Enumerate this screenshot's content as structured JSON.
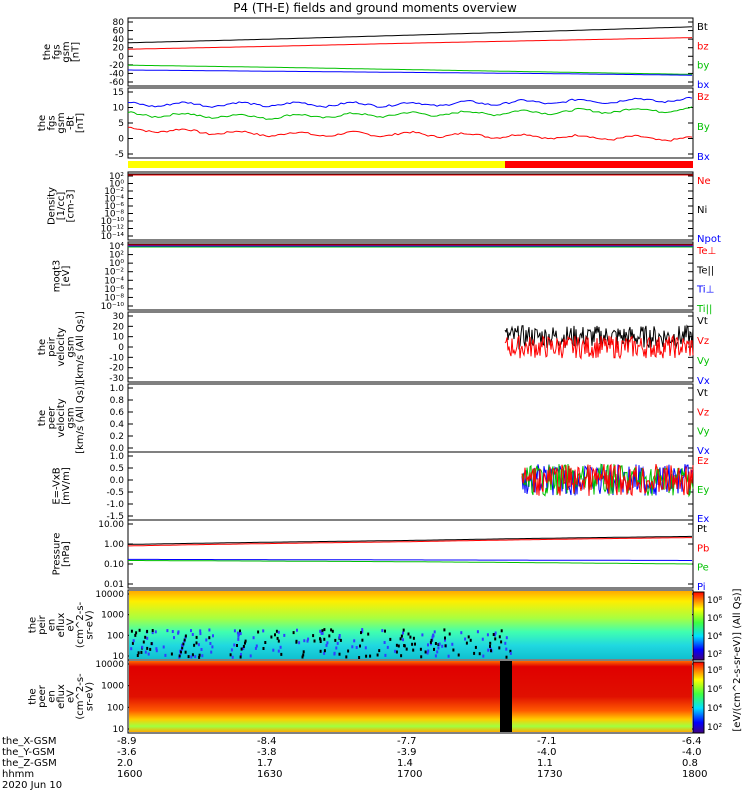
{
  "title": "P4 (TH-E) fields and ground moments overview",
  "panels": [
    {
      "id": "fgs-gsm-1",
      "ylabel": [
        "the",
        "fgs",
        "gsm",
        "[nT]"
      ],
      "type": "line",
      "yticks": [
        "80",
        "60",
        "40",
        "20",
        "0",
        "-20",
        "-40",
        "-60"
      ],
      "legend": [
        {
          "text": "Bt",
          "color": "#000000"
        },
        {
          "text": "bz",
          "color": "#ff0000"
        },
        {
          "text": "by",
          "color": "#00c000"
        },
        {
          "text": "bx",
          "color": "#0000ff"
        }
      ]
    },
    {
      "id": "fgs-gsm-2",
      "ylabel": [
        "the",
        "fgs",
        "gsm",
        "-Bt",
        "[nT]"
      ],
      "type": "line",
      "yticks": [
        "15",
        "10",
        "5",
        "0",
        "-5"
      ],
      "legend": [
        {
          "text": "Bz",
          "color": "#ff0000"
        },
        {
          "text": "By",
          "color": "#00c000"
        },
        {
          "text": "Bx",
          "color": "#0000ff"
        }
      ]
    },
    {
      "id": "density",
      "ylabel": [
        "Density",
        "[1/cc]",
        "[cm-3]"
      ],
      "type": "log",
      "yticks": [
        "10²",
        "10⁰",
        "10⁻²",
        "10⁻⁴",
        "10⁻⁶",
        "10⁻⁸",
        "10⁻¹⁰",
        "10⁻¹²",
        "10⁻¹⁴"
      ],
      "legend": [
        {
          "text": "Ne",
          "color": "#ff0000"
        },
        {
          "text": "Ni",
          "color": "#000000"
        },
        {
          "text": "Npot",
          "color": "#0000ff"
        }
      ]
    },
    {
      "id": "temperature",
      "ylabel": [
        "moqt3",
        "[eV]"
      ],
      "type": "log",
      "yticks": [
        "10⁴",
        "10²",
        "10⁰",
        "10⁻²",
        "10⁻⁴",
        "10⁻⁶",
        "10⁻⁸",
        "10⁻¹⁰"
      ],
      "legend": [
        {
          "text": "Te⊥",
          "color": "#ff0000"
        },
        {
          "text": "Te||",
          "color": "#000000"
        },
        {
          "text": "Ti⊥",
          "color": "#0000ff"
        },
        {
          "text": "Ti||",
          "color": "#00c000"
        }
      ]
    },
    {
      "id": "peir-velocity",
      "ylabel": [
        "the",
        "peir",
        "velocity",
        "gsm",
        "[km/s (All Qs)]"
      ],
      "type": "line",
      "yticks": [
        "30",
        "20",
        "10",
        "0",
        "-10",
        "-20",
        "-30"
      ],
      "legend": [
        {
          "text": "Vt",
          "color": "#000000"
        },
        {
          "text": "Vz",
          "color": "#ff0000"
        },
        {
          "text": "Vy",
          "color": "#00c000"
        },
        {
          "text": "Vx",
          "color": "#0000ff"
        }
      ]
    },
    {
      "id": "peer-velocity",
      "ylabel": [
        "the",
        "peer",
        "velocity",
        "gsm",
        "[km/s (All Qs)]"
      ],
      "type": "line",
      "yticks": [
        "1.0",
        "0.8",
        "0.6",
        "0.4",
        "0.2",
        "0.0"
      ],
      "legend": [
        {
          "text": "Vt",
          "color": "#000000"
        },
        {
          "text": "Vz",
          "color": "#ff0000"
        },
        {
          "text": "Vy",
          "color": "#00c000"
        },
        {
          "text": "Vx",
          "color": "#0000ff"
        }
      ]
    },
    {
      "id": "efield",
      "ylabel": [
        "E=-VxB",
        "[mV/m]"
      ],
      "type": "line",
      "yticks": [
        "1.0",
        "0.5",
        "0.0",
        "-0.5",
        "-1.0",
        "-1.5"
      ],
      "legend": [
        {
          "text": "Ez",
          "color": "#ff0000"
        },
        {
          "text": "Ey",
          "color": "#00c000"
        },
        {
          "text": "Ex",
          "color": "#0000ff"
        }
      ]
    },
    {
      "id": "pressure",
      "ylabel": [
        "Pressure",
        "[nPa]"
      ],
      "type": "log",
      "yticks": [
        "10.00",
        "1.00",
        "0.10",
        "0.01"
      ],
      "legend": [
        {
          "text": "Pt",
          "color": "#000000"
        },
        {
          "text": "Pb",
          "color": "#ff0000"
        },
        {
          "text": "Pe",
          "color": "#00c000"
        },
        {
          "text": "Pi",
          "color": "#0000ff"
        }
      ]
    },
    {
      "id": "peir-eflux",
      "ylabel": [
        "the",
        "peir",
        "en",
        "eflux",
        "eV",
        "(cm^2-s-",
        "sr-eV)"
      ],
      "type": "spectrogram",
      "yticks": [
        "10000",
        "1000",
        "100",
        "10"
      ],
      "legend": []
    },
    {
      "id": "peer-eflux",
      "ylabel": [
        "the",
        "peer",
        "en",
        "eflux",
        "eV",
        "(cm^2-s-",
        "sr-eV)"
      ],
      "type": "spectrogram",
      "yticks": [
        "10000",
        "1000",
        "100",
        "10"
      ],
      "legend": []
    }
  ],
  "colorbar": {
    "ticks": [
      "10⁸",
      "10⁶",
      "10⁴",
      "10²",
      "10⁸",
      "10⁶",
      "10⁴",
      "10²"
    ],
    "label": "[eV/(cm^2-s-sr-eV)] (All Qs)]"
  },
  "mode_bar": {
    "colors": [
      "#ffff00",
      "#ff0000"
    ]
  },
  "footer": {
    "rows": [
      {
        "label": "the_X-GSM",
        "values": [
          "-8.9",
          "-8.4",
          "-7.7",
          "-7.1",
          "-6.4"
        ]
      },
      {
        "label": "the_Y-GSM",
        "values": [
          "-3.6",
          "-3.8",
          "-3.9",
          "-4.0",
          "-4.0"
        ]
      },
      {
        "label": "the_Z-GSM",
        "values": [
          "2.0",
          "1.7",
          "1.4",
          "1.1",
          "0.8"
        ]
      },
      {
        "label": "hhmm",
        "values": [
          "1600",
          "1630",
          "1700",
          "1730",
          "1800"
        ]
      }
    ],
    "date": "2020 Jun 10"
  },
  "chart_data": [
    {
      "type": "line",
      "panel": "fgs-gsm-1",
      "xlim": [
        "1600",
        "1800"
      ],
      "ylim": [
        -60,
        90
      ],
      "series": [
        {
          "name": "Bt",
          "x": [
            "1600",
            "1630",
            "1700",
            "1730",
            "1800"
          ],
          "values": [
            38,
            47,
            57,
            67,
            78
          ]
        },
        {
          "name": "bz",
          "x": [
            "1600",
            "1630",
            "1700",
            "1730",
            "1800"
          ],
          "values": [
            22,
            29,
            37,
            44,
            51
          ]
        },
        {
          "name": "by",
          "x": [
            "1600",
            "1630",
            "1700",
            "1730",
            "1800"
          ],
          "values": [
            -18,
            -23,
            -29,
            -35,
            -41
          ]
        },
        {
          "name": "bx",
          "x": [
            "1600",
            "1630",
            "1700",
            "1730",
            "1800"
          ],
          "values": [
            -30,
            -33,
            -36,
            -39,
            -43
          ]
        }
      ]
    },
    {
      "type": "line",
      "panel": "fgs-gsm-2",
      "xlim": [
        "1600",
        "1800"
      ],
      "ylim": [
        -8,
        17
      ],
      "series": [
        {
          "name": "Bz",
          "x": [
            "1600",
            "1630",
            "1700",
            "1730",
            "1800"
          ],
          "values": [
            2,
            0,
            0,
            -1,
            -2
          ]
        },
        {
          "name": "By",
          "x": [
            "1600",
            "1630",
            "1700",
            "1730",
            "1800"
          ],
          "values": [
            8,
            7,
            8,
            9,
            10
          ]
        },
        {
          "name": "Bx",
          "x": [
            "1600",
            "1630",
            "1700",
            "1730",
            "1800"
          ],
          "values": [
            12,
            12,
            12,
            13,
            14
          ]
        }
      ]
    },
    {
      "type": "line",
      "panel": "pressure",
      "xlim": [
        "1600",
        "1800"
      ],
      "ylim": [
        0.01,
        10
      ],
      "series": [
        {
          "name": "Pt",
          "x": [
            "1600",
            "1700",
            "1800"
          ],
          "values": [
            0.95,
            1.5,
            2.4
          ]
        },
        {
          "name": "Pb",
          "x": [
            "1600",
            "1700",
            "1800"
          ],
          "values": [
            0.8,
            1.3,
            2.1
          ]
        },
        {
          "name": "Pe",
          "x": [
            "1600",
            "1700",
            "1800"
          ],
          "values": [
            0.15,
            0.13,
            0.1
          ]
        },
        {
          "name": "Pi",
          "x": [
            "1600",
            "1700",
            "1800"
          ],
          "values": [
            0.17,
            0.16,
            0.15
          ]
        }
      ]
    },
    {
      "type": "line",
      "panel": "peir-velocity",
      "xlim": [
        "1600",
        "1800"
      ],
      "ylim": [
        -30,
        30
      ],
      "series": [
        {
          "name": "Vt",
          "x": [
            "1722",
            "1800"
          ],
          "values": [
            10,
            10
          ]
        },
        {
          "name": "Vz",
          "x": [
            "1722",
            "1800"
          ],
          "values": [
            0,
            0
          ]
        }
      ]
    }
  ]
}
